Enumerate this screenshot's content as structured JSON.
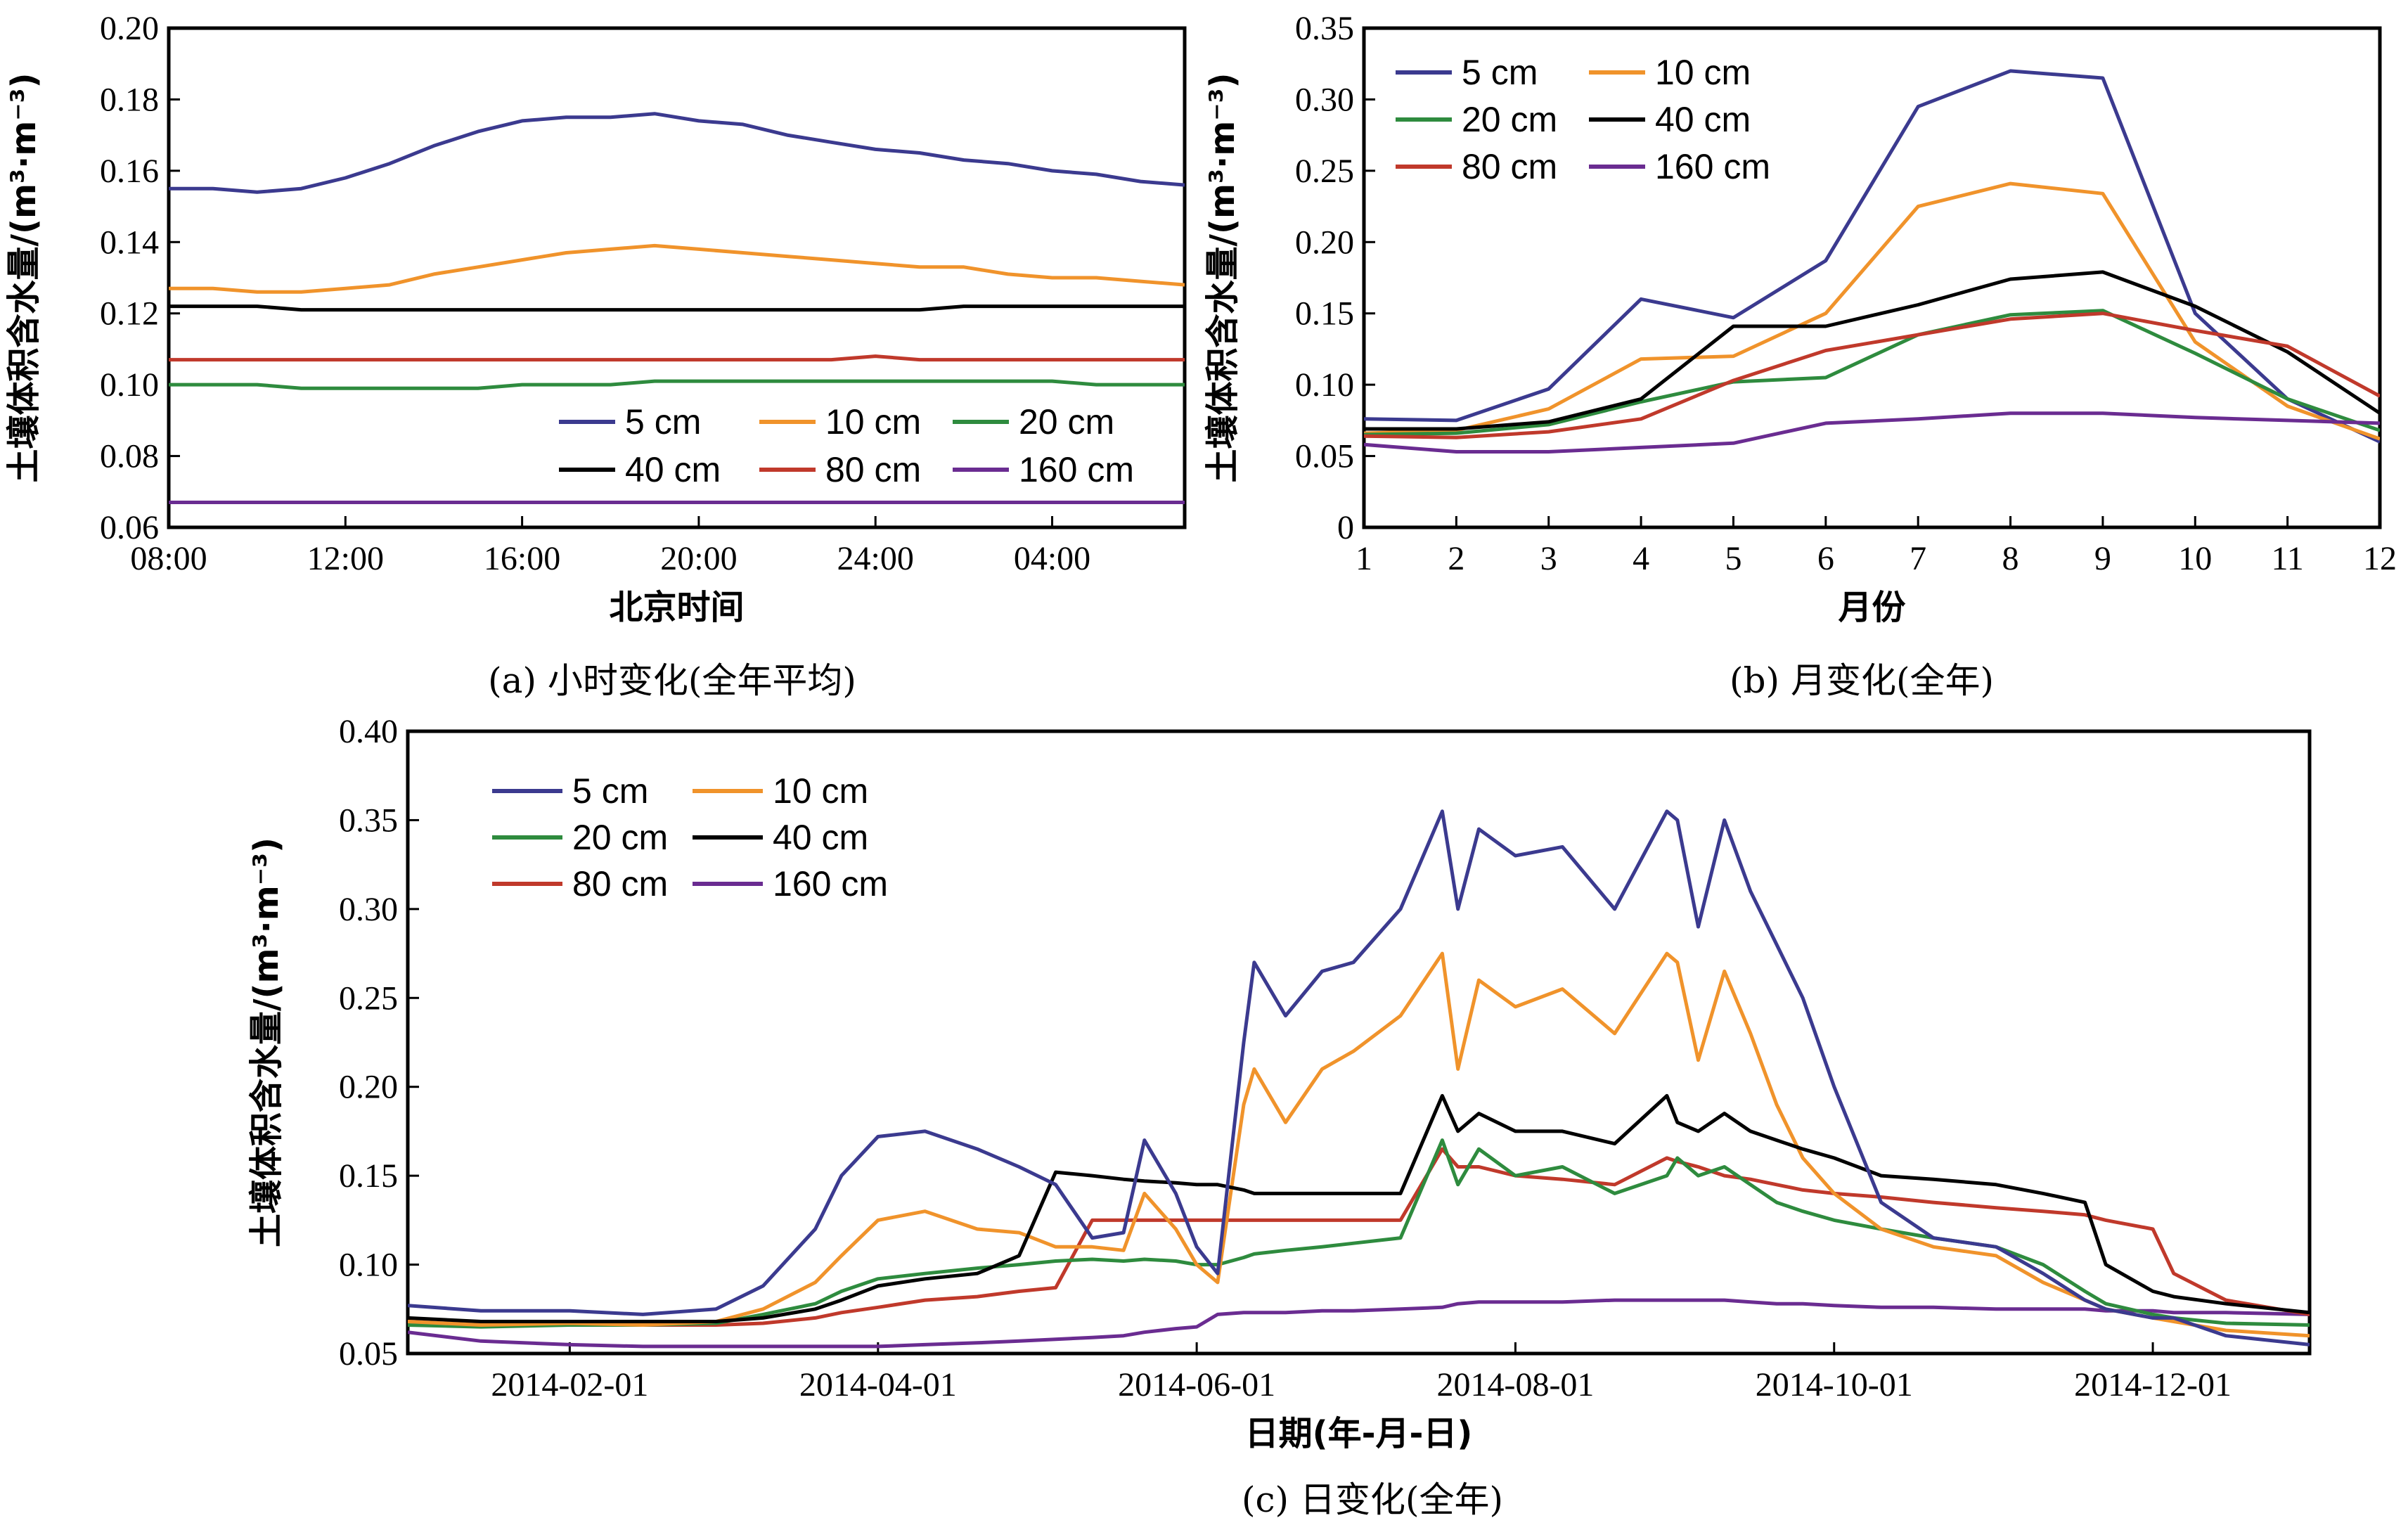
{
  "colors": {
    "5 cm": "#3b3a8f",
    "10 cm": "#f0932b",
    "20 cm": "#2e8b3e",
    "40 cm": "#000000",
    "80 cm": "#c0392b",
    "160 cm": "#6a2c91"
  },
  "captions": {
    "a": "(a) 小时变化(全年平均)",
    "b": "(b) 月变化(全年)",
    "c": "(c) 日变化(全年)"
  },
  "chart_data": [
    {
      "type": "line",
      "xlabel": "北京时间",
      "ylabel": "土壤体积含水量/(m³·m⁻³)",
      "ylim": [
        0.06,
        0.2
      ],
      "yticks": [
        "0.06",
        "0.08",
        "0.10",
        "0.12",
        "0.14",
        "0.16",
        "0.18",
        "0.20"
      ],
      "xticks": [
        "08:00",
        "12:00",
        "16:00",
        "20:00",
        "24:00",
        "04:00"
      ],
      "legend": "lower-right",
      "x": [
        "08:00",
        "09:00",
        "10:00",
        "11:00",
        "12:00",
        "13:00",
        "14:00",
        "15:00",
        "16:00",
        "17:00",
        "18:00",
        "19:00",
        "20:00",
        "21:00",
        "22:00",
        "23:00",
        "24:00",
        "01:00",
        "02:00",
        "03:00",
        "04:00",
        "05:00",
        "06:00",
        "07:00"
      ],
      "series": [
        {
          "name": "5 cm",
          "values": [
            0.155,
            0.155,
            0.154,
            0.155,
            0.158,
            0.162,
            0.167,
            0.171,
            0.174,
            0.175,
            0.175,
            0.176,
            0.174,
            0.173,
            0.17,
            0.168,
            0.166,
            0.165,
            0.163,
            0.162,
            0.16,
            0.159,
            0.157,
            0.156
          ]
        },
        {
          "name": "10 cm",
          "values": [
            0.127,
            0.127,
            0.126,
            0.126,
            0.127,
            0.128,
            0.131,
            0.133,
            0.135,
            0.137,
            0.138,
            0.139,
            0.138,
            0.137,
            0.136,
            0.135,
            0.134,
            0.133,
            0.133,
            0.131,
            0.13,
            0.13,
            0.129,
            0.128
          ]
        },
        {
          "name": "20 cm",
          "values": [
            0.1,
            0.1,
            0.1,
            0.099,
            0.099,
            0.099,
            0.099,
            0.099,
            0.1,
            0.1,
            0.1,
            0.101,
            0.101,
            0.101,
            0.101,
            0.101,
            0.101,
            0.101,
            0.101,
            0.101,
            0.101,
            0.1,
            0.1,
            0.1
          ]
        },
        {
          "name": "40 cm",
          "values": [
            0.122,
            0.122,
            0.122,
            0.121,
            0.121,
            0.121,
            0.121,
            0.121,
            0.121,
            0.121,
            0.121,
            0.121,
            0.121,
            0.121,
            0.121,
            0.121,
            0.121,
            0.121,
            0.122,
            0.122,
            0.122,
            0.122,
            0.122,
            0.122
          ]
        },
        {
          "name": "80 cm",
          "values": [
            0.107,
            0.107,
            0.107,
            0.107,
            0.107,
            0.107,
            0.107,
            0.107,
            0.107,
            0.107,
            0.107,
            0.107,
            0.107,
            0.107,
            0.107,
            0.107,
            0.108,
            0.107,
            0.107,
            0.107,
            0.107,
            0.107,
            0.107,
            0.107
          ]
        },
        {
          "name": "160 cm",
          "values": [
            0.067,
            0.067,
            0.067,
            0.067,
            0.067,
            0.067,
            0.067,
            0.067,
            0.067,
            0.067,
            0.067,
            0.067,
            0.067,
            0.067,
            0.067,
            0.067,
            0.067,
            0.067,
            0.067,
            0.067,
            0.067,
            0.067,
            0.067,
            0.067
          ]
        }
      ]
    },
    {
      "type": "line",
      "xlabel": "月份",
      "ylabel": "土壤体积含水量/(m³·m⁻³)",
      "ylim": [
        0,
        0.35
      ],
      "yticks": [
        "0",
        "0.05",
        "0.10",
        "0.15",
        "0.20",
        "0.25",
        "0.30",
        "0.35"
      ],
      "x": [
        1,
        2,
        3,
        4,
        5,
        6,
        7,
        8,
        9,
        10,
        11,
        12
      ],
      "xticks": [
        "1",
        "2",
        "3",
        "4",
        "5",
        "6",
        "7",
        "8",
        "9",
        "10",
        "11",
        "12"
      ],
      "legend": "top-left",
      "series": [
        {
          "name": "5 cm",
          "values": [
            0.076,
            0.075,
            0.097,
            0.16,
            0.147,
            0.187,
            0.295,
            0.32,
            0.315,
            0.15,
            0.09,
            0.06
          ]
        },
        {
          "name": "10 cm",
          "values": [
            0.066,
            0.068,
            0.083,
            0.118,
            0.12,
            0.15,
            0.225,
            0.241,
            0.234,
            0.13,
            0.085,
            0.062
          ]
        },
        {
          "name": "20 cm",
          "values": [
            0.065,
            0.066,
            0.072,
            0.088,
            0.102,
            0.105,
            0.135,
            0.149,
            0.152,
            0.122,
            0.09,
            0.068
          ]
        },
        {
          "name": "40 cm",
          "values": [
            0.069,
            0.069,
            0.074,
            0.09,
            0.141,
            0.141,
            0.156,
            0.174,
            0.179,
            0.155,
            0.123,
            0.08
          ]
        },
        {
          "name": "80 cm",
          "values": [
            0.064,
            0.063,
            0.067,
            0.076,
            0.103,
            0.124,
            0.135,
            0.146,
            0.15,
            0.138,
            0.127,
            0.092
          ]
        },
        {
          "name": "160 cm",
          "values": [
            0.058,
            0.053,
            0.053,
            0.056,
            0.059,
            0.073,
            0.076,
            0.08,
            0.08,
            0.077,
            0.075,
            0.073
          ]
        }
      ]
    },
    {
      "type": "line",
      "xlabel": "日期(年-月-日)",
      "ylabel": "土壤体积含水量/(m³·m⁻³)",
      "ylim": [
        0.05,
        0.4
      ],
      "yticks": [
        "0.05",
        "0.10",
        "0.15",
        "0.20",
        "0.25",
        "0.30",
        "0.35",
        "0.40"
      ],
      "xticks": [
        "2014-02-01",
        "2014-04-01",
        "2014-06-01",
        "2014-08-01",
        "2014-10-01",
        "2014-12-01"
      ],
      "legend": "top-left",
      "x": [
        "2014-01-01",
        "2014-01-15",
        "2014-02-01",
        "2014-02-15",
        "2014-03-01",
        "2014-03-10",
        "2014-03-20",
        "2014-03-25",
        "2014-04-01",
        "2014-04-10",
        "2014-04-20",
        "2014-04-28",
        "2014-05-05",
        "2014-05-12",
        "2014-05-18",
        "2014-05-22",
        "2014-05-28",
        "2014-06-01",
        "2014-06-05",
        "2014-06-10",
        "2014-06-12",
        "2014-06-18",
        "2014-06-25",
        "2014-07-01",
        "2014-07-10",
        "2014-07-18",
        "2014-07-21",
        "2014-07-25",
        "2014-08-01",
        "2014-08-10",
        "2014-08-20",
        "2014-08-30",
        "2014-09-01",
        "2014-09-05",
        "2014-09-10",
        "2014-09-15",
        "2014-09-20",
        "2014-09-25",
        "2014-10-01",
        "2014-10-10",
        "2014-10-20",
        "2014-11-01",
        "2014-11-10",
        "2014-11-18",
        "2014-11-22",
        "2014-12-01",
        "2014-12-05",
        "2014-12-15",
        "2014-12-31"
      ],
      "series": [
        {
          "name": "5 cm",
          "values": [
            0.077,
            0.074,
            0.074,
            0.072,
            0.075,
            0.088,
            0.12,
            0.15,
            0.172,
            0.175,
            0.165,
            0.155,
            0.145,
            0.115,
            0.118,
            0.17,
            0.14,
            0.11,
            0.095,
            0.225,
            0.27,
            0.24,
            0.265,
            0.27,
            0.3,
            0.355,
            0.3,
            0.345,
            0.33,
            0.335,
            0.3,
            0.355,
            0.35,
            0.29,
            0.35,
            0.31,
            0.28,
            0.25,
            0.2,
            0.135,
            0.115,
            0.11,
            0.095,
            0.08,
            0.075,
            0.07,
            0.07,
            0.06,
            0.055
          ]
        },
        {
          "name": "10 cm",
          "values": [
            0.068,
            0.066,
            0.067,
            0.066,
            0.068,
            0.075,
            0.09,
            0.105,
            0.125,
            0.13,
            0.12,
            0.118,
            0.11,
            0.11,
            0.108,
            0.14,
            0.12,
            0.1,
            0.09,
            0.19,
            0.21,
            0.18,
            0.21,
            0.22,
            0.24,
            0.275,
            0.21,
            0.26,
            0.245,
            0.255,
            0.23,
            0.275,
            0.27,
            0.215,
            0.265,
            0.23,
            0.19,
            0.16,
            0.14,
            0.12,
            0.11,
            0.105,
            0.09,
            0.08,
            0.075,
            0.07,
            0.068,
            0.063,
            0.06
          ]
        },
        {
          "name": "20 cm",
          "values": [
            0.066,
            0.065,
            0.066,
            0.066,
            0.067,
            0.072,
            0.078,
            0.085,
            0.092,
            0.095,
            0.098,
            0.1,
            0.102,
            0.103,
            0.102,
            0.103,
            0.102,
            0.1,
            0.1,
            0.104,
            0.106,
            0.108,
            0.11,
            0.112,
            0.115,
            0.17,
            0.145,
            0.165,
            0.15,
            0.155,
            0.14,
            0.15,
            0.16,
            0.15,
            0.155,
            0.145,
            0.135,
            0.13,
            0.125,
            0.12,
            0.115,
            0.11,
            0.1,
            0.085,
            0.078,
            0.072,
            0.07,
            0.067,
            0.066
          ]
        },
        {
          "name": "40 cm",
          "values": [
            0.07,
            0.068,
            0.068,
            0.068,
            0.068,
            0.07,
            0.075,
            0.08,
            0.088,
            0.092,
            0.095,
            0.105,
            0.152,
            0.15,
            0.148,
            0.147,
            0.146,
            0.145,
            0.145,
            0.142,
            0.14,
            0.14,
            0.14,
            0.14,
            0.14,
            0.195,
            0.175,
            0.185,
            0.175,
            0.175,
            0.168,
            0.195,
            0.18,
            0.175,
            0.185,
            0.175,
            0.17,
            0.165,
            0.16,
            0.15,
            0.148,
            0.145,
            0.14,
            0.135,
            0.1,
            0.085,
            0.082,
            0.078,
            0.073
          ]
        },
        {
          "name": "80 cm",
          "values": [
            0.068,
            0.066,
            0.066,
            0.066,
            0.066,
            0.067,
            0.07,
            0.073,
            0.076,
            0.08,
            0.082,
            0.085,
            0.087,
            0.125,
            0.125,
            0.125,
            0.125,
            0.125,
            0.125,
            0.125,
            0.125,
            0.125,
            0.125,
            0.125,
            0.125,
            0.165,
            0.155,
            0.155,
            0.15,
            0.148,
            0.145,
            0.16,
            0.158,
            0.155,
            0.15,
            0.148,
            0.145,
            0.142,
            0.14,
            0.138,
            0.135,
            0.132,
            0.13,
            0.128,
            0.125,
            0.12,
            0.095,
            0.08,
            0.072
          ]
        },
        {
          "name": "160 cm",
          "values": [
            0.062,
            0.057,
            0.055,
            0.054,
            0.054,
            0.054,
            0.054,
            0.054,
            0.054,
            0.055,
            0.056,
            0.057,
            0.058,
            0.059,
            0.06,
            0.062,
            0.064,
            0.065,
            0.072,
            0.073,
            0.073,
            0.073,
            0.074,
            0.074,
            0.075,
            0.076,
            0.078,
            0.079,
            0.079,
            0.079,
            0.08,
            0.08,
            0.08,
            0.08,
            0.08,
            0.079,
            0.078,
            0.078,
            0.077,
            0.076,
            0.076,
            0.075,
            0.075,
            0.075,
            0.074,
            0.074,
            0.073,
            0.073,
            0.072
          ]
        }
      ]
    }
  ]
}
